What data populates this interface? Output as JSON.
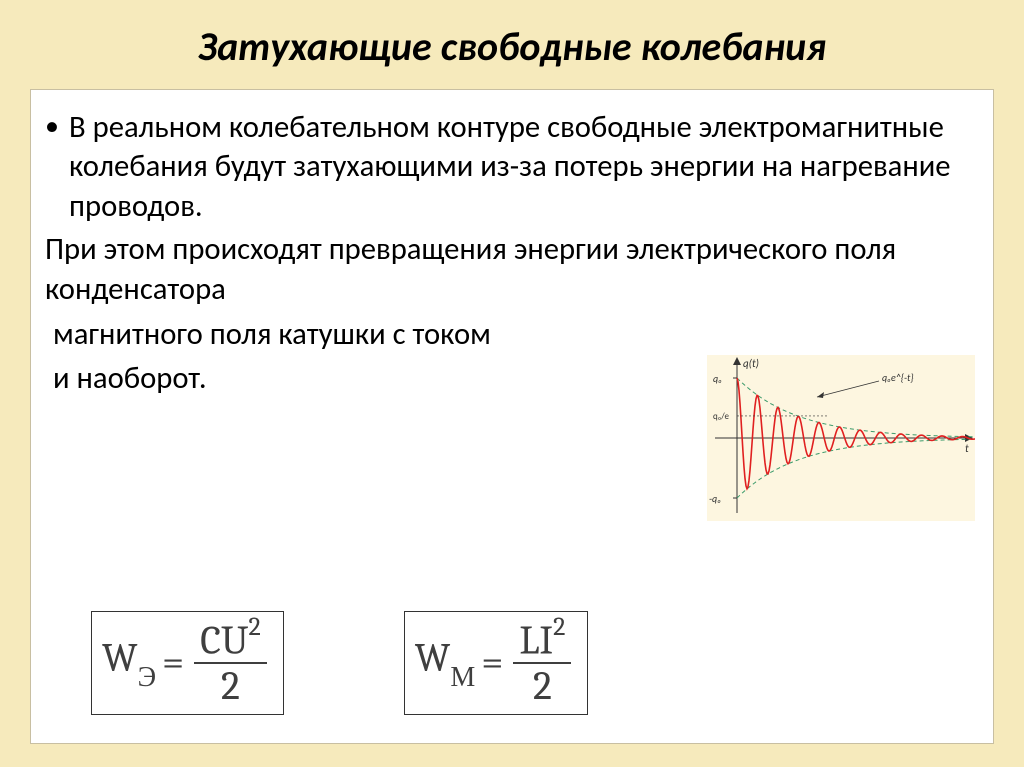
{
  "slide": {
    "background_color": "#f6eabc",
    "content_background": "#ffffff",
    "content_border": "#c8bfa2",
    "title": {
      "text": "Затухающие свободные колебания",
      "color": "#000000",
      "fontsize_pt": 30
    },
    "body": {
      "text_color": "#000000",
      "fontsize_pt": 23,
      "bullet": "В реальном колебательном контуре свободные электромагнитные колебания будут затухающими из-за потерь энергии на нагревание проводов.",
      "para1": " При этом происходят  превращения энергии электрического поля конденсатора",
      "para2": " магнитного поля катушки  с током",
      "para3": "  и наоборот."
    },
    "formulas": {
      "electric": {
        "symbol": "W",
        "subscript": "Э",
        "numerator_base": "CU",
        "numerator_exp": "2",
        "denominator": "2"
      },
      "magnetic": {
        "symbol": "W",
        "subscript": "М",
        "numerator_base": "LI",
        "numerator_exp": "2",
        "denominator": "2"
      }
    },
    "chart": {
      "type": "line",
      "description": "damped oscillation q(t) with exponential envelope",
      "wave_color": "#e02020",
      "envelope_color": "#3a9a6a",
      "axis_color": "#333333",
      "background_color": "#fdf6e0",
      "y_label": "q(t)",
      "x_label": "t",
      "q0_label": "q₀",
      "neg_q0_label": "-q₀",
      "envelope_label": "q₀e^{-t}",
      "initial_amplitude": 60,
      "decay_rate": 0.14,
      "angular_frequency": 2.6,
      "periods_shown": 9,
      "xlim": [
        0,
        240
      ],
      "ylim": [
        -70,
        70
      ]
    }
  }
}
